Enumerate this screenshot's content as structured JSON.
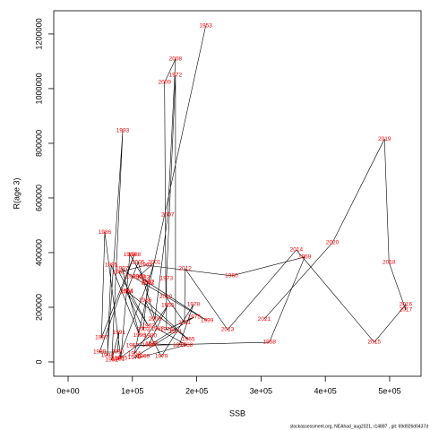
{
  "chart_data": {
    "type": "line",
    "xlabel": "SSB",
    "ylabel": "R(age 3)",
    "footnote": "stockassessment.org, NEAhad_aug2021, r14887 , git: 69d926d0437d",
    "line_color": "#000000",
    "label_color": "#ff0000",
    "labels": [
      1953,
      1954,
      1955,
      1956,
      1957,
      1958,
      1959,
      1960,
      1961,
      1962,
      1963,
      1964,
      1965,
      1966,
      1967,
      1968,
      1969,
      1970,
      1971,
      1972,
      1973,
      1974,
      1975,
      1976,
      1977,
      1978,
      1979,
      1980,
      1981,
      1982,
      1983,
      1984,
      1985,
      1986,
      1987,
      1988,
      1989,
      1990,
      1991,
      1992,
      1993,
      1994,
      1995,
      1996,
      1997,
      1998,
      1999,
      2000,
      2001,
      2002,
      2003,
      2004,
      2005,
      2006,
      2007,
      2008,
      2009,
      2010,
      2011,
      2012,
      2013,
      2014,
      2015,
      2016,
      2017,
      2018,
      2019,
      2020,
      2021
    ],
    "x": [
      214000,
      103000,
      155000,
      125000,
      100000,
      313000,
      368000,
      254000,
      121000,
      79000,
      125000,
      91000,
      187000,
      120000,
      139000,
      184000,
      117000,
      103000,
      167000,
      167000,
      153000,
      153000,
      196000,
      130000,
      173000,
      195000,
      145000,
      128000,
      78000,
      124000,
      117000,
      96000,
      82000,
      57000,
      52000,
      103000,
      49000,
      77000,
      79000,
      68000,
      85000,
      61000,
      67000,
      111000,
      84000,
      100000,
      216000,
      110000,
      134000,
      124000,
      117000,
      91000,
      109000,
      135000,
      155000,
      167000,
      150000,
      152000,
      181000,
      182000,
      248000,
      355000,
      476000,
      525000,
      525000,
      499000,
      492000,
      411000,
      305000
    ],
    "values": [
      1230000,
      30000,
      207000,
      62000,
      59000,
      72000,
      384000,
      315000,
      354000,
      328000,
      131000,
      259000,
      82000,
      226000,
      121000,
      62000,
      20000,
      16000,
      111000,
      1049000,
      305000,
      118000,
      164000,
      66000,
      62000,
      210000,
      20000,
      95000,
      10000,
      292000,
      308000,
      393000,
      13000,
      475000,
      89000,
      393000,
      36000,
      36000,
      108000,
      7000,
      846000,
      23000,
      354000,
      98000,
      341000,
      312000,
      151000,
      312000,
      364000,
      289000,
      118000,
      256000,
      364000,
      157000,
      538000,
      1108000,
      1023000,
      239000,
      144000,
      341000,
      118000,
      410000,
      72000,
      210000,
      190000,
      364000,
      816000,
      436000,
      157000
    ],
    "xlim": [
      -22300,
      548800
    ],
    "ylim": [
      -52500,
      1285000
    ],
    "xticks": [
      {
        "value": 0,
        "label": "0e+00"
      },
      {
        "value": 100000,
        "label": "1e+05"
      },
      {
        "value": 200000,
        "label": "2e+05"
      },
      {
        "value": 300000,
        "label": "3e+05"
      },
      {
        "value": 400000,
        "label": "4e+05"
      },
      {
        "value": 500000,
        "label": "5e+05"
      }
    ],
    "yticks": [
      0,
      200000,
      400000,
      600000,
      800000,
      1000000,
      1200000
    ]
  }
}
